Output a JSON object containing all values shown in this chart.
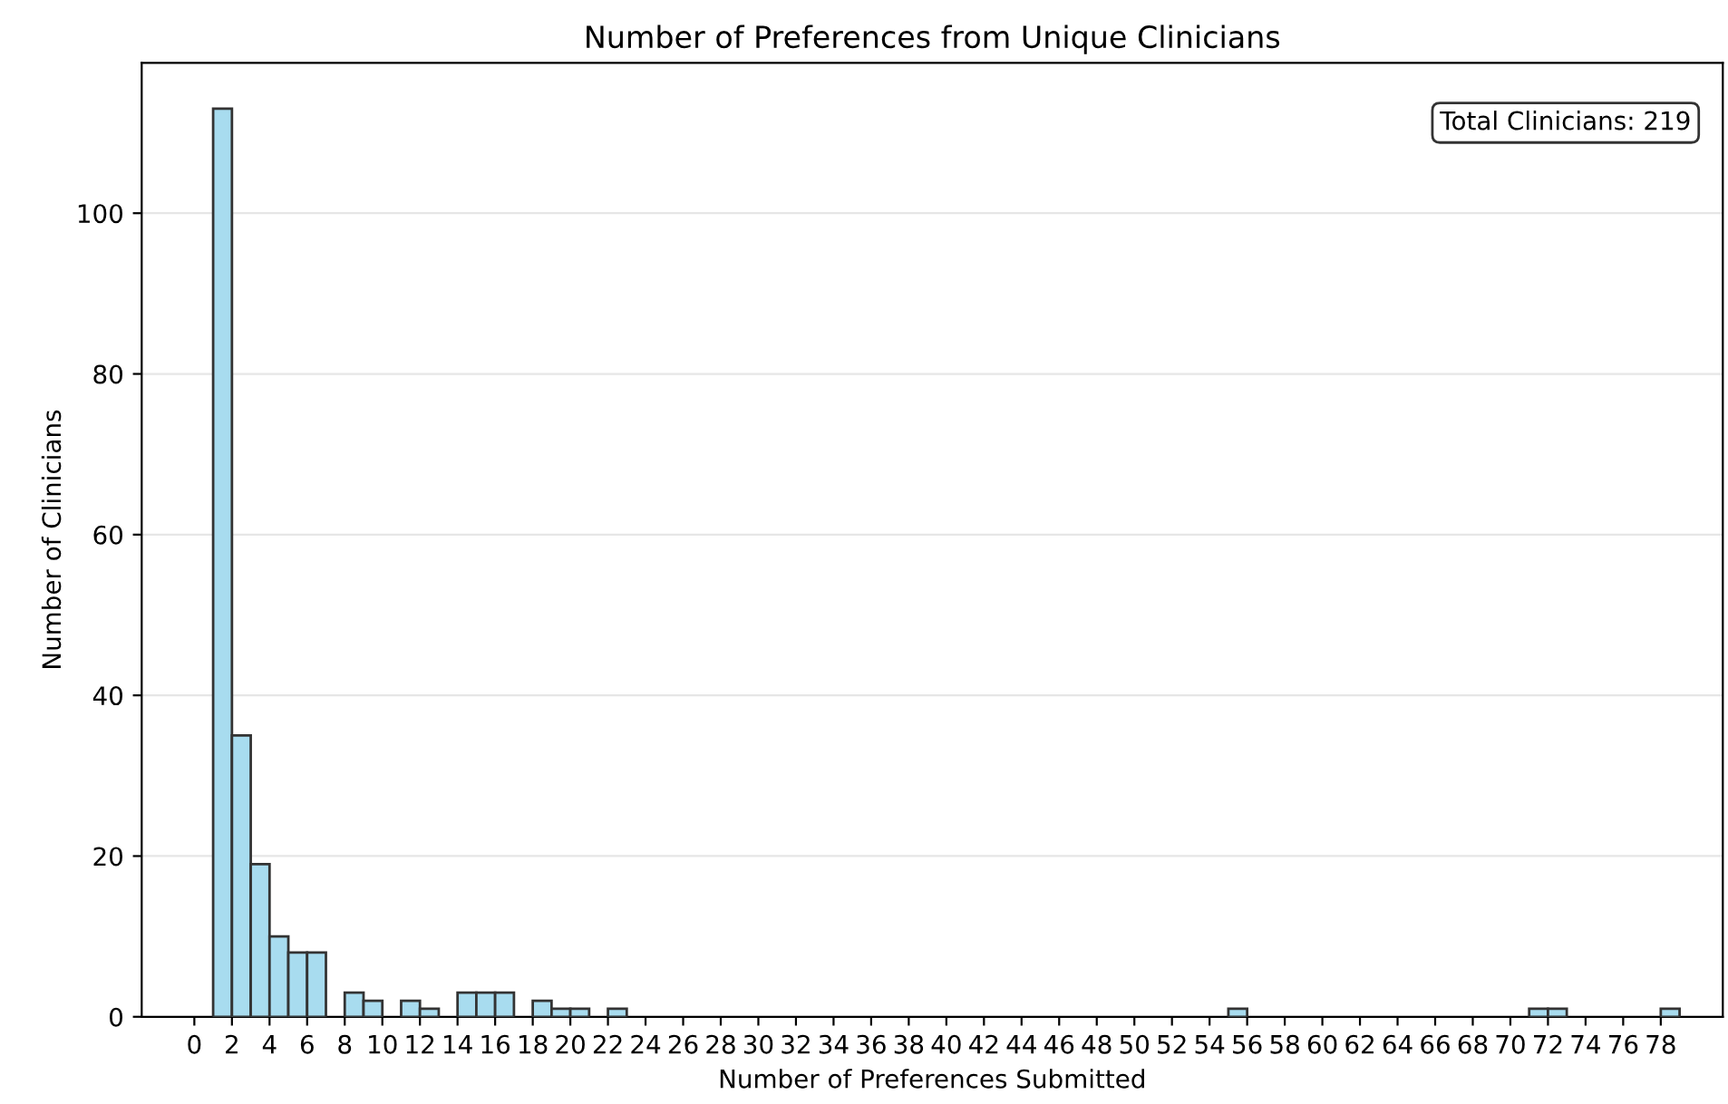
{
  "chart_data": {
    "type": "histogram",
    "title": "Number of Preferences from Unique Clinicians",
    "xlabel": "Number of Preferences Submitted",
    "ylabel": "Number of Clinicians",
    "bins": [
      1,
      2,
      3,
      4,
      5,
      6,
      7,
      8,
      9,
      10,
      11,
      12,
      13,
      14,
      15,
      16,
      17,
      18,
      19,
      20,
      21,
      22,
      23,
      24,
      25,
      26,
      27,
      28,
      29,
      30,
      31,
      32,
      33,
      34,
      35,
      36,
      37,
      38,
      39,
      40,
      41,
      42,
      43,
      44,
      45,
      46,
      47,
      48,
      49,
      50,
      51,
      52,
      53,
      54,
      55,
      56,
      57,
      58,
      59,
      60,
      61,
      62,
      63,
      64,
      65,
      66,
      67,
      68,
      69,
      70,
      71,
      72,
      73,
      74,
      75,
      76,
      77,
      78,
      79
    ],
    "values": [
      113,
      35,
      19,
      10,
      8,
      8,
      0,
      3,
      2,
      0,
      2,
      1,
      0,
      3,
      3,
      3,
      0,
      2,
      1,
      1,
      0,
      1,
      0,
      0,
      0,
      0,
      0,
      0,
      0,
      0,
      0,
      0,
      0,
      0,
      0,
      0,
      0,
      0,
      0,
      0,
      0,
      0,
      0,
      0,
      0,
      0,
      0,
      0,
      0,
      0,
      0,
      0,
      0,
      0,
      1,
      0,
      0,
      0,
      0,
      0,
      0,
      0,
      0,
      0,
      0,
      0,
      0,
      0,
      0,
      0,
      1,
      1,
      0,
      0,
      0,
      0,
      0,
      1
    ],
    "color": "#a8dcef",
    "xlim": [
      -2.8,
      81.3
    ],
    "ylim": [
      0,
      118.7
    ],
    "xticks": [
      0,
      2,
      4,
      6,
      8,
      10,
      12,
      14,
      16,
      18,
      20,
      22,
      24,
      26,
      28,
      30,
      32,
      34,
      36,
      38,
      40,
      42,
      44,
      46,
      48,
      50,
      52,
      54,
      56,
      58,
      60,
      62,
      64,
      66,
      68,
      70,
      72,
      74,
      76,
      78
    ],
    "yticks": [
      0,
      20,
      40,
      60,
      80,
      100
    ],
    "grid": "y",
    "annotations": [
      "Total Clinicians: 219"
    ]
  }
}
